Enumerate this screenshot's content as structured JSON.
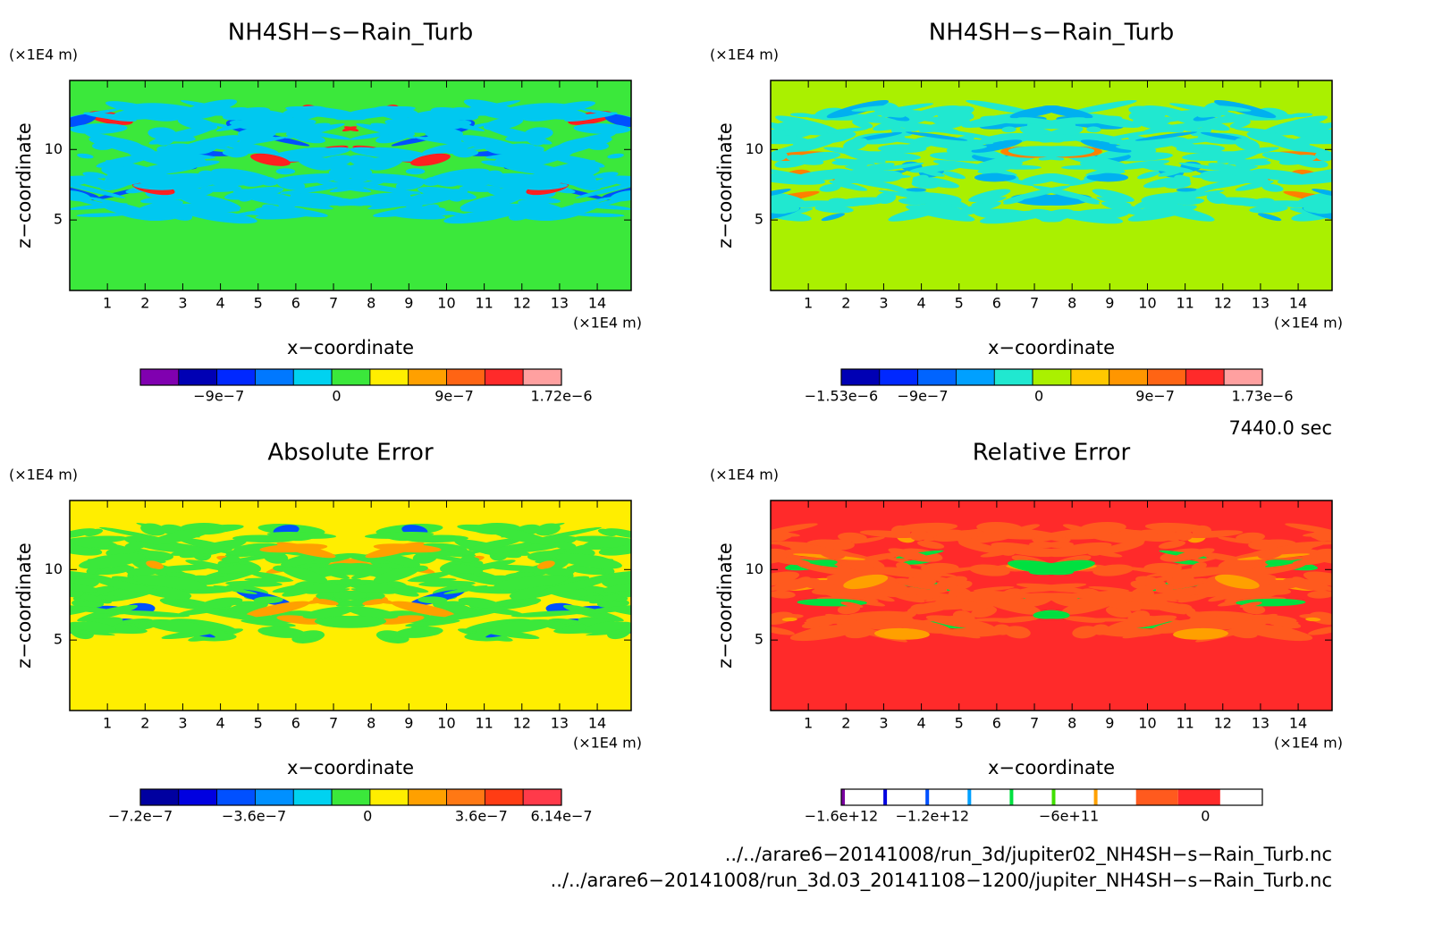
{
  "chart_data": [
    {
      "type": "contour",
      "title": "NH4SH−s−Rain_Turb",
      "x_label": "x−coordinate",
      "y_label": "z−coordinate",
      "x_unit": "(×1E4 m)",
      "y_unit": "(×1E4 m)",
      "xlim": [
        0,
        14.9
      ],
      "xticks": [
        1,
        2,
        3,
        4,
        5,
        6,
        7,
        8,
        9,
        10,
        11,
        12,
        13,
        14
      ],
      "ylim": [
        0,
        14.9
      ],
      "yticks": [
        5,
        10
      ],
      "field": {
        "background": "#3be83b",
        "bands": [
          "#00c8f0",
          "#0050ff",
          "#ff2020"
        ]
      },
      "colorbar": {
        "lim": [
          -1.5e-06,
          1.72e-06
        ],
        "ticks": [
          {
            "value": -9e-07,
            "label": "−9e−7"
          },
          0,
          {
            "value": 9e-07,
            "label": "9e−7"
          },
          {
            "value": 1.72e-06,
            "label": "1.72e−6"
          }
        ],
        "colors": [
          "#8000b0",
          "#0000b4",
          "#0028ff",
          "#0078ff",
          "#00d2f0",
          "#3be83b",
          "#ffee00",
          "#ffa000",
          "#ff6414",
          "#ff2a2a",
          "#ffa0a0"
        ]
      }
    },
    {
      "type": "contour",
      "title": "NH4SH−s−Rain_Turb",
      "x_label": "x−coordinate",
      "y_label": "z−coordinate",
      "x_unit": "(×1E4 m)",
      "y_unit": "(×1E4 m)",
      "xlim": [
        0,
        14.9
      ],
      "xticks": [
        1,
        2,
        3,
        4,
        5,
        6,
        7,
        8,
        9,
        10,
        11,
        12,
        13,
        14
      ],
      "ylim": [
        0,
        14.9
      ],
      "yticks": [
        5,
        10
      ],
      "field": {
        "background": "#aaf000",
        "bands": [
          "#20e8d0",
          "#00b0f0",
          "#ff8000"
        ]
      },
      "colorbar": {
        "lim": [
          -1.53e-06,
          1.73e-06
        ],
        "ticks": [
          {
            "value": -1.53e-06,
            "label": "−1.53e−6"
          },
          {
            "value": -9e-07,
            "label": "−9e−7"
          },
          0,
          {
            "value": 9e-07,
            "label": "9e−7"
          },
          {
            "value": 1.73e-06,
            "label": "1.73e−6"
          }
        ],
        "colors": [
          "#0000b4",
          "#0028ff",
          "#0064ff",
          "#00a0ff",
          "#20e8d0",
          "#aaf000",
          "#ffc800",
          "#ff9600",
          "#ff6414",
          "#ff2a2a",
          "#ffa0a0"
        ]
      }
    },
    {
      "type": "contour",
      "title": "Absolute Error",
      "x_label": "x−coordinate",
      "y_label": "z−coordinate",
      "x_unit": "(×1E4 m)",
      "y_unit": "(×1E4 m)",
      "xlim": [
        0,
        14.9
      ],
      "xticks": [
        1,
        2,
        3,
        4,
        5,
        6,
        7,
        8,
        9,
        10,
        11,
        12,
        13,
        14
      ],
      "ylim": [
        0,
        14.9
      ],
      "yticks": [
        5,
        10
      ],
      "field": {
        "background": "#ffee00",
        "bands": [
          "#3be83b",
          "#ffa000",
          "#0050ff"
        ]
      },
      "colorbar": {
        "lim": [
          -7.2e-07,
          6.14e-07
        ],
        "ticks": [
          {
            "value": -7.2e-07,
            "label": "−7.2e−7"
          },
          {
            "value": -3.6e-07,
            "label": "−3.6e−7"
          },
          0,
          {
            "value": 3.6e-07,
            "label": "3.6e−7"
          },
          {
            "value": 6.14e-07,
            "label": "6.14e−7"
          }
        ],
        "colors": [
          "#0000a0",
          "#0000e0",
          "#0050ff",
          "#0090ff",
          "#00d2f0",
          "#3be83b",
          "#ffee00",
          "#ffa000",
          "#ff7814",
          "#ff3c14",
          "#ff3a4a"
        ]
      }
    },
    {
      "type": "contour",
      "title": "Relative Error",
      "x_label": "x−coordinate",
      "y_label": "z−coordinate",
      "x_unit": "(×1E4 m)",
      "y_unit": "(×1E4 m)",
      "xlim": [
        0,
        14.9
      ],
      "xticks": [
        1,
        2,
        3,
        4,
        5,
        6,
        7,
        8,
        9,
        10,
        11,
        12,
        13,
        14
      ],
      "ylim": [
        0,
        14.9
      ],
      "yticks": [
        5,
        10
      ],
      "field": {
        "background": "#ff2a2a",
        "bands": [
          "#ff5a1e",
          "#ffa000",
          "#00e040"
        ]
      },
      "colorbar": {
        "lim": [
          -1600000000000.0,
          250000000000.0
        ],
        "ticks": [
          {
            "value": -1600000000000.0,
            "label": "−1.6e+12"
          },
          {
            "value": -1200000000000.0,
            "label": "−1.2e+12"
          },
          {
            "value": -600000000000.0,
            "label": "−6e+11"
          },
          0
        ],
        "colors": [
          "#ffffff",
          "#ffffff",
          "#ffffff",
          "#ffffff",
          "#ffffff",
          "#ffffff",
          "#ffffff",
          "#ff5a1e",
          "#ff2a2a",
          "#ffffff"
        ],
        "edge_colors": [
          "#7a00a0",
          "#0000e0",
          "#0050ff",
          "#00a0ff",
          "#00e040",
          "#40e000",
          "#ffa000"
        ]
      }
    }
  ],
  "time": "7440.0 sec",
  "files": [
    "../../arare6−20141008/run_3d/jupiter02_NH4SH−s−Rain_Turb.nc",
    "../../arare6−20141008/run_3d.03_20141108−1200/jupiter_NH4SH−s−Rain_Turb.nc"
  ]
}
